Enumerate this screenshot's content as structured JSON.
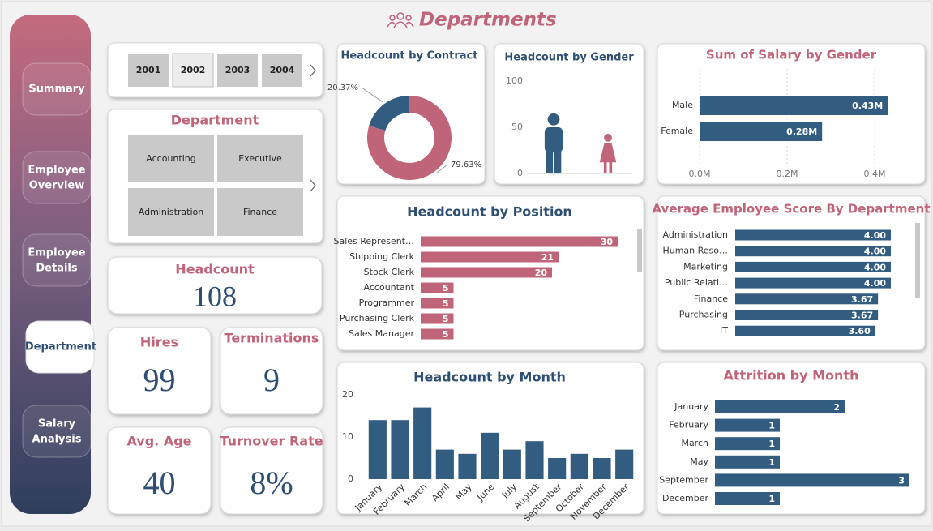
{
  "header": {
    "title": "Departments"
  },
  "nav": {
    "items": [
      "Summary",
      "Employee Overview",
      "Employee Details",
      "Department",
      "Salary Analysis"
    ],
    "selected": 3
  },
  "year_slicer": {
    "items": [
      "2001",
      "2002",
      "2003",
      "2004"
    ],
    "highlighted": 1
  },
  "department_slicer": {
    "title": "Department",
    "items": [
      "Accounting",
      "Executive",
      "Administration",
      "Finance"
    ]
  },
  "cards": [
    {
      "label": "Headcount",
      "value": 108
    },
    {
      "label": "Hires",
      "value": 99
    },
    {
      "label": "Terminations",
      "value": 9
    },
    {
      "label": "Avg. Age",
      "value": 40
    },
    {
      "label": "Turnover Rate",
      "value": "8%"
    }
  ],
  "chart_data": [
    {
      "type": "donut",
      "title": "Headcount by Contract",
      "values": [
        20.37,
        79.63
      ],
      "value_labels": [
        "20.37%",
        "79.63%"
      ],
      "colors": [
        "#335c81",
        "#c0647a"
      ]
    },
    {
      "type": "pictograph",
      "title": "Headcount by Gender",
      "values": [
        65,
        43
      ],
      "colors": [
        "#335c81",
        "#c0647a"
      ],
      "ylim": [
        0,
        100
      ],
      "yticks": [
        0,
        50,
        100
      ]
    },
    {
      "type": "hbar",
      "title": "Sum of Salary by Gender",
      "categories": [
        "Male",
        "Female"
      ],
      "values": [
        0.43,
        0.28
      ],
      "value_labels": [
        "0.43M",
        "0.28M"
      ],
      "color": "#335c81",
      "xlim": [
        0,
        0.49
      ],
      "xticks": [
        {
          "value": 0,
          "label": "0.0M"
        },
        {
          "value": 0.2,
          "label": "0.2M"
        },
        {
          "value": 0.4,
          "label": "0.4M"
        }
      ],
      "grid": true
    },
    {
      "type": "hbar",
      "title": "Headcount by Position",
      "categories": [
        "Sales Represent…",
        "Shipping Clerk",
        "Stock Clerk",
        "Accountant",
        "Programmer",
        "Purchasing Clerk",
        "Sales Manager"
      ],
      "values": [
        30,
        21,
        20,
        5,
        5,
        5,
        5
      ],
      "color": "#c0647a"
    },
    {
      "type": "hbar",
      "title": "Average Employee Score By Department",
      "categories": [
        "Administration",
        "Human Reso…",
        "Marketing",
        "Public Relati…",
        "Finance",
        "Purchasing",
        "IT"
      ],
      "values": [
        4,
        4,
        4,
        4,
        3.67,
        3.67,
        3.6
      ],
      "value_labels": [
        "4.00",
        "4.00",
        "4.00",
        "4.00",
        "3.67",
        "3.67",
        "3.60"
      ],
      "color": "#335c81"
    },
    {
      "type": "bar",
      "title": "Headcount by Month",
      "categories": [
        "January",
        "February",
        "March",
        "April",
        "May",
        "June",
        "July",
        "August",
        "September",
        "October",
        "November",
        "December"
      ],
      "values": [
        14,
        14,
        17,
        7,
        6,
        11,
        7,
        9,
        5,
        6,
        5,
        7
      ],
      "color": "#335c81",
      "ylim": [
        0,
        20
      ],
      "yticks": [
        0,
        10,
        20
      ]
    },
    {
      "type": "hbar",
      "title": "Attrition by Month",
      "categories": [
        "January",
        "February",
        "March",
        "May",
        "September",
        "December"
      ],
      "values": [
        2,
        1,
        1,
        1,
        3,
        1
      ],
      "color": "#335c81"
    }
  ]
}
